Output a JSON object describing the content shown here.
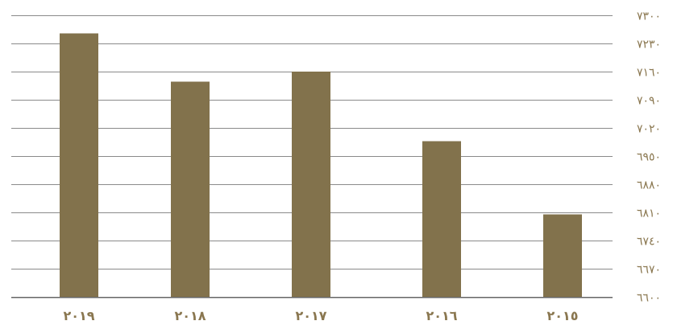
{
  "chart_data": {
    "type": "bar",
    "categories": [
      "٢٠١٩",
      "٢٠١٨",
      "٢٠١٧",
      "٢٠١٦",
      "٢٠١٥"
    ],
    "values": [
      7255,
      7135,
      7160,
      6987,
      6805
    ],
    "ylim": [
      6600,
      7300
    ],
    "yticks": [
      {
        "value": 7300,
        "label": "٧٣٠٠"
      },
      {
        "value": 7230,
        "label": "٧٢٣٠"
      },
      {
        "value": 7160,
        "label": "٧١٦٠"
      },
      {
        "value": 7090,
        "label": "٧٠٩٠"
      },
      {
        "value": 7020,
        "label": "٧٠٢٠"
      },
      {
        "value": 6950,
        "label": "٦٩٥٠"
      },
      {
        "value": 6880,
        "label": "٦٨٨٠"
      },
      {
        "value": 6810,
        "label": "٦٨١٠"
      },
      {
        "value": 6740,
        "label": "٦٧٤٠"
      },
      {
        "value": 6670,
        "label": "٦٦٧٠"
      },
      {
        "value": 6600,
        "label": "٦٦٠٠"
      }
    ],
    "grid": true,
    "bar_color": "#82724c",
    "tick_color": "#8a7750",
    "axis_side": "right"
  }
}
